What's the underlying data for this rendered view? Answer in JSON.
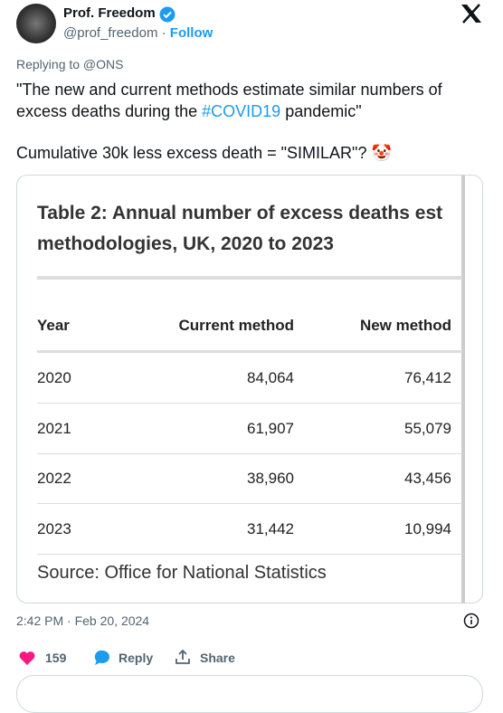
{
  "author": {
    "name": "Prof. Freedom",
    "handle": "@prof_freedom",
    "follow": "Follow"
  },
  "replying_to": "Replying to @ONS",
  "tweet": {
    "line1_before": "\"The new and current methods estimate similar numbers of excess deaths during the ",
    "hashtag": "#COVID19",
    "line1_after": " pandemic\"",
    "line2": "Cumulative 30k less excess death = \"SIMILAR\"? 🤡"
  },
  "table": {
    "title_lines": [
      "Table 2: Annual number of excess deaths est",
      "methodologies, UK, 2020 to 2023"
    ],
    "headers": [
      "Year",
      "Current method",
      "New method"
    ],
    "rows": [
      [
        "2020",
        "84,064",
        "76,412"
      ],
      [
        "2021",
        "61,907",
        "55,079"
      ],
      [
        "2022",
        "38,960",
        "43,456"
      ],
      [
        "2023",
        "31,442",
        "10,994"
      ]
    ],
    "source": "Source: Office for National Statistics"
  },
  "timestamp": "2:42 PM · Feb 20, 2024",
  "actions": {
    "likes": "159",
    "reply": "Reply",
    "share": "Share"
  }
}
